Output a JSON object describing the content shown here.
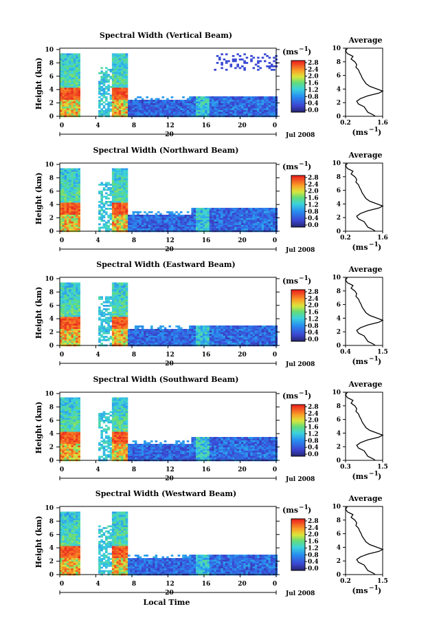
{
  "x_axis_label": "Local Time",
  "date_label": "Jul 2008",
  "day_label": "20",
  "colorbar_unit": "(ms",
  "colorbar_unit_exp": "−1",
  "colorbar_unit_close": ")",
  "average_title": "Average",
  "y_axis_label": "Height (km)",
  "chart_data": [
    {
      "type": "heatmap",
      "title": "Spectral Width (Vertical Beam)",
      "ylabel": "Height (km)",
      "xlabel": "Local Time",
      "x_ticks": [
        "0",
        "4",
        "8",
        "12",
        "16",
        "20",
        "0"
      ],
      "y_ticks": [
        "0",
        "2",
        "4",
        "6",
        "8",
        "10"
      ],
      "colorbar_ticks": [
        "0.0",
        "0.4",
        "0.8",
        "1.2",
        "1.6",
        "2.0",
        "2.4",
        "2.8"
      ],
      "average": {
        "xlim": [
          0.2,
          1.6
        ],
        "x_ticks": [
          "0.2",
          "1.6"
        ],
        "y_ticks": [
          "0",
          "2",
          "4",
          "6",
          "8",
          "10"
        ],
        "xlabel": "(ms"
      }
    },
    {
      "type": "heatmap",
      "title": "Spectral Width (Northward Beam)",
      "ylabel": "Height (km)",
      "xlabel": "Local Time",
      "x_ticks": [
        "0",
        "4",
        "8",
        "12",
        "16",
        "20",
        "0"
      ],
      "y_ticks": [
        "0",
        "2",
        "4",
        "6",
        "8",
        "10"
      ],
      "colorbar_ticks": [
        "0.0",
        "0.4",
        "0.8",
        "1.2",
        "1.6",
        "2.0",
        "2.4",
        "2.8"
      ],
      "average": {
        "xlim": [
          0.2,
          1.6
        ],
        "x_ticks": [
          "0.2",
          "1.6"
        ],
        "y_ticks": [
          "0",
          "2",
          "4",
          "6",
          "8",
          "10"
        ],
        "xlabel": "(ms"
      }
    },
    {
      "type": "heatmap",
      "title": "Spectral Width (Eastward Beam)",
      "ylabel": "Height (km)",
      "xlabel": "Local Time",
      "x_ticks": [
        "0",
        "4",
        "8",
        "12",
        "16",
        "20",
        "0"
      ],
      "y_ticks": [
        "0",
        "2",
        "4",
        "6",
        "8",
        "10"
      ],
      "colorbar_ticks": [
        "0.0",
        "0.4",
        "0.8",
        "1.2",
        "1.6",
        "2.0",
        "2.4",
        "2.8"
      ],
      "average": {
        "xlim": [
          0.4,
          1.5
        ],
        "x_ticks": [
          "0.4",
          "1.5"
        ],
        "y_ticks": [
          "0",
          "2",
          "4",
          "6",
          "8",
          "10"
        ],
        "xlabel": "(ms"
      }
    },
    {
      "type": "heatmap",
      "title": "Spectral Width (Southward Beam)",
      "ylabel": "Height (km)",
      "xlabel": "Local Time",
      "x_ticks": [
        "0",
        "4",
        "8",
        "12",
        "16",
        "20",
        "0"
      ],
      "y_ticks": [
        "0",
        "2",
        "4",
        "6",
        "8",
        "10"
      ],
      "colorbar_ticks": [
        "0.0",
        "0.4",
        "0.8",
        "1.2",
        "1.6",
        "2.0",
        "2.4",
        "2.8"
      ],
      "average": {
        "xlim": [
          0.3,
          1.5
        ],
        "x_ticks": [
          "0.3",
          "1.5"
        ],
        "y_ticks": [
          "0",
          "2",
          "4",
          "6",
          "8",
          "10"
        ],
        "xlabel": "(ms"
      }
    },
    {
      "type": "heatmap",
      "title": "Spectral Width (Westward Beam)",
      "ylabel": "Height (km)",
      "xlabel": "Local Time",
      "x_ticks": [
        "0",
        "4",
        "8",
        "12",
        "16",
        "20",
        "0"
      ],
      "y_ticks": [
        "0",
        "2",
        "4",
        "6",
        "8",
        "10"
      ],
      "colorbar_ticks": [
        "0.0",
        "0.4",
        "0.8",
        "1.2",
        "1.6",
        "2.0",
        "2.4",
        "2.8"
      ],
      "average": {
        "xlim": [
          0.2,
          1.5
        ],
        "x_ticks": [
          "0.2",
          "1.5"
        ],
        "y_ticks": [
          "0",
          "2",
          "4",
          "6",
          "8",
          "10"
        ],
        "xlabel": "(ms"
      }
    }
  ]
}
